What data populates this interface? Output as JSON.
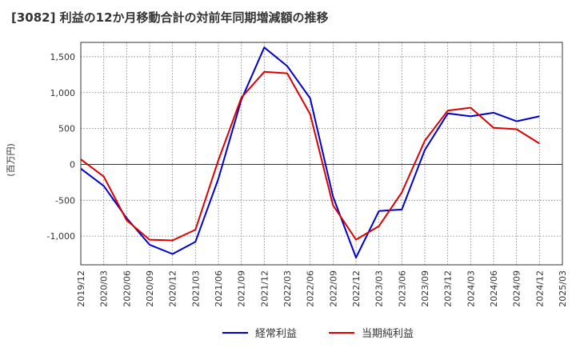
{
  "chart_data": {
    "type": "line",
    "title": "[3082]  利益の12か月移動合計の対前年同期増減額の推移",
    "ylabel": "(百万円)",
    "xlabel": "",
    "ylim": [
      -1400,
      1700
    ],
    "yticks": [
      1500,
      1000,
      500,
      0,
      -500,
      -1000
    ],
    "ytick_labels": [
      "1,500",
      "1,000",
      "500",
      "0",
      "-500",
      "-1,000"
    ],
    "categories": [
      "2019/12",
      "2020/03",
      "2020/06",
      "2020/09",
      "2020/12",
      "2021/03",
      "2021/06",
      "2021/09",
      "2021/12",
      "2022/03",
      "2022/06",
      "2022/09",
      "2022/12",
      "2023/03",
      "2023/06",
      "2023/09",
      "2023/12",
      "2024/03",
      "2024/06",
      "2024/09",
      "2024/12",
      "2025/03"
    ],
    "grid": true,
    "legend_position": "bottom-center",
    "series": [
      {
        "name": "経常利益",
        "color": "#0000cc",
        "values": [
          -60,
          -300,
          -750,
          -1120,
          -1250,
          -1080,
          -200,
          900,
          1630,
          1370,
          920,
          -450,
          -1300,
          -650,
          -630,
          200,
          710,
          670,
          720,
          600,
          670,
          null
        ]
      },
      {
        "name": "当期純利益",
        "color": "#dd0000",
        "values": [
          70,
          -170,
          -780,
          -1050,
          -1060,
          -910,
          60,
          930,
          1290,
          1270,
          700,
          -570,
          -1050,
          -860,
          -390,
          330,
          750,
          790,
          510,
          490,
          290,
          null
        ]
      }
    ]
  }
}
